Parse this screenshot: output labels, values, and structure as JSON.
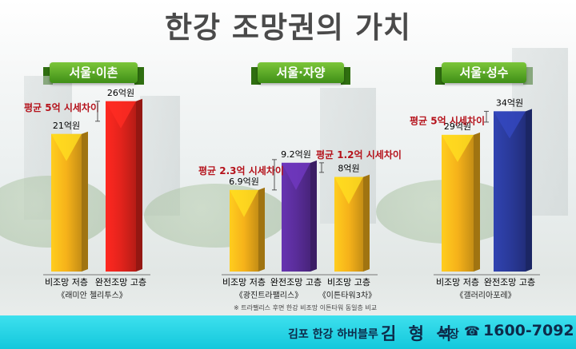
{
  "title": "한강 조망권의 가치",
  "note": "※ 트라팰리스 후면 한강 비조망 이튼타워 동일층 비교",
  "footer": {
    "company": "김포 한강 하버블루",
    "name": "김 형 석",
    "rank": "부장",
    "phone_icon": "☎",
    "phone": "1600-7092"
  },
  "colors": {
    "non_view": "#f6b21a",
    "view_ichon": "#e3231c",
    "view_jayang": "#5a2d9a",
    "view_seongsu": "#2a3a9a",
    "diff_text": "#b5121b",
    "ribbon": "#4ea422",
    "footer": "#1ccfe3"
  },
  "chart_data": [
    {
      "type": "bar",
      "title": "서울·이촌",
      "categories": [
        "비조망 저층",
        "완전조망 고층"
      ],
      "values": [
        21,
        26
      ],
      "value_labels": [
        "21억원",
        "26억원"
      ],
      "complex": "《래미안 첼리투스》",
      "annotations": [
        "평균 5억 시세차이"
      ],
      "ylim": [
        0,
        34
      ]
    },
    {
      "type": "bar",
      "title": "서울·자양",
      "categories": [
        "비조망 저층",
        "완전조망 고층",
        "비조망 고층"
      ],
      "values": [
        6.9,
        9.2,
        8
      ],
      "value_labels": [
        "6.9억원",
        "9.2억원",
        "8억원"
      ],
      "complex": [
        "《광진트라팰리스》",
        "《이튼타워3차》"
      ],
      "annotations": [
        "평균 2.3억 시세차이",
        "평균 1.2억 시세차이"
      ],
      "ylim": [
        0,
        11
      ]
    },
    {
      "type": "bar",
      "title": "서울·성수",
      "categories": [
        "비조망 저층",
        "완전조망 고층"
      ],
      "values": [
        29,
        34
      ],
      "value_labels": [
        "29억원",
        "34억원"
      ],
      "complex": "《갤러리아포레》",
      "annotations": [
        "평균 5억 시세차이"
      ],
      "ylim": [
        0,
        36
      ]
    }
  ]
}
